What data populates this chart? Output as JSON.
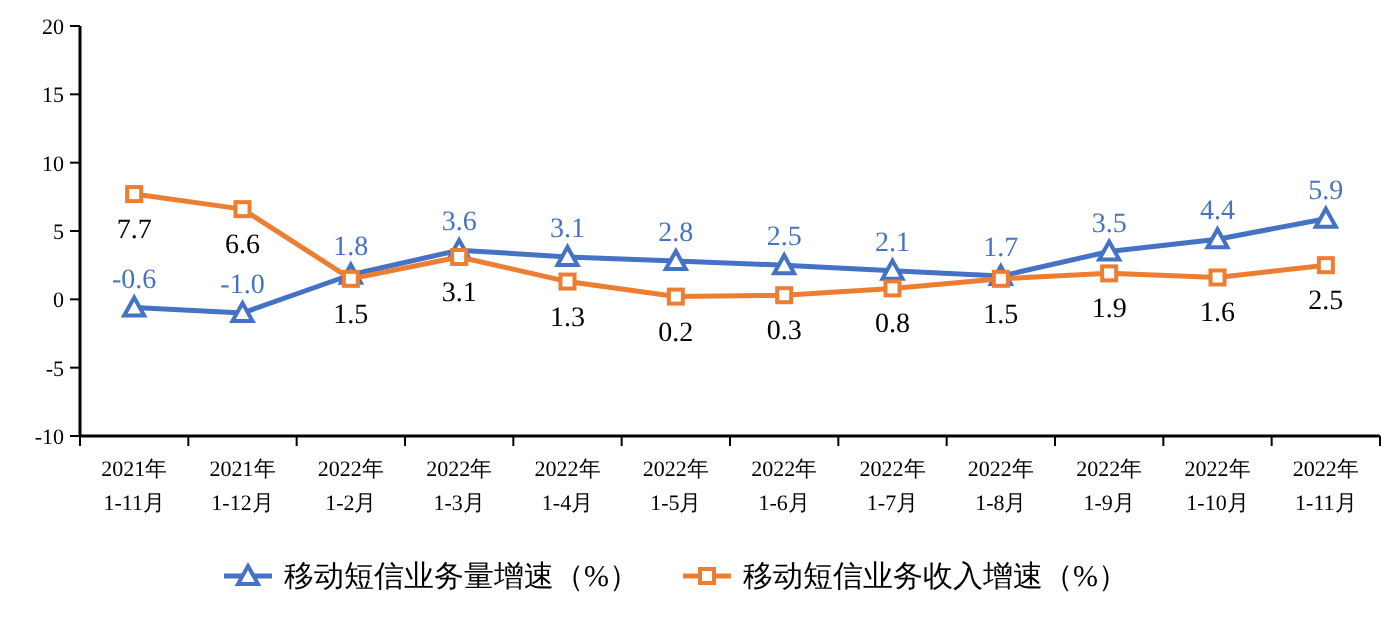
{
  "chart_data": {
    "type": "line",
    "categories": [
      "2021年 1-11月",
      "2021年 1-12月",
      "2022年 1-2月",
      "2022年 1-3月",
      "2022年 1-4月",
      "2022年 1-5月",
      "2022年 1-6月",
      "2022年 1-7月",
      "2022年 1-8月",
      "2022年 1-9月",
      "2022年 1-10月",
      "2022年 1-11月"
    ],
    "series": [
      {
        "name": "移动短信业务量增速（%）",
        "color": "#4472c4",
        "marker": "triangle",
        "values": [
          -0.6,
          -1.0,
          1.8,
          3.6,
          3.1,
          2.8,
          2.5,
          2.1,
          1.7,
          3.5,
          4.4,
          5.9
        ],
        "value_labels": [
          "-0.6",
          "-1.0",
          "1.8",
          "3.6",
          "3.1",
          "2.8",
          "2.5",
          "2.1",
          "1.7",
          "3.5",
          "4.4",
          "5.9"
        ]
      },
      {
        "name": "移动短信业务收入增速（%）",
        "color": "#ed7d31",
        "marker": "square",
        "values": [
          7.7,
          6.6,
          1.5,
          3.1,
          1.3,
          0.2,
          0.3,
          0.8,
          1.5,
          1.9,
          1.6,
          2.5
        ],
        "value_labels": [
          "7.7",
          "6.6",
          "1.5",
          "3.1",
          "1.3",
          "0.2",
          "0.3",
          "0.8",
          "1.5",
          "1.9",
          "1.6",
          "2.5"
        ]
      }
    ],
    "ylim": [
      -10,
      20
    ],
    "yticks": [
      -10,
      -5,
      0,
      5,
      10,
      15,
      20
    ],
    "legend": "bottom",
    "grid": false,
    "line_style": "solid"
  }
}
